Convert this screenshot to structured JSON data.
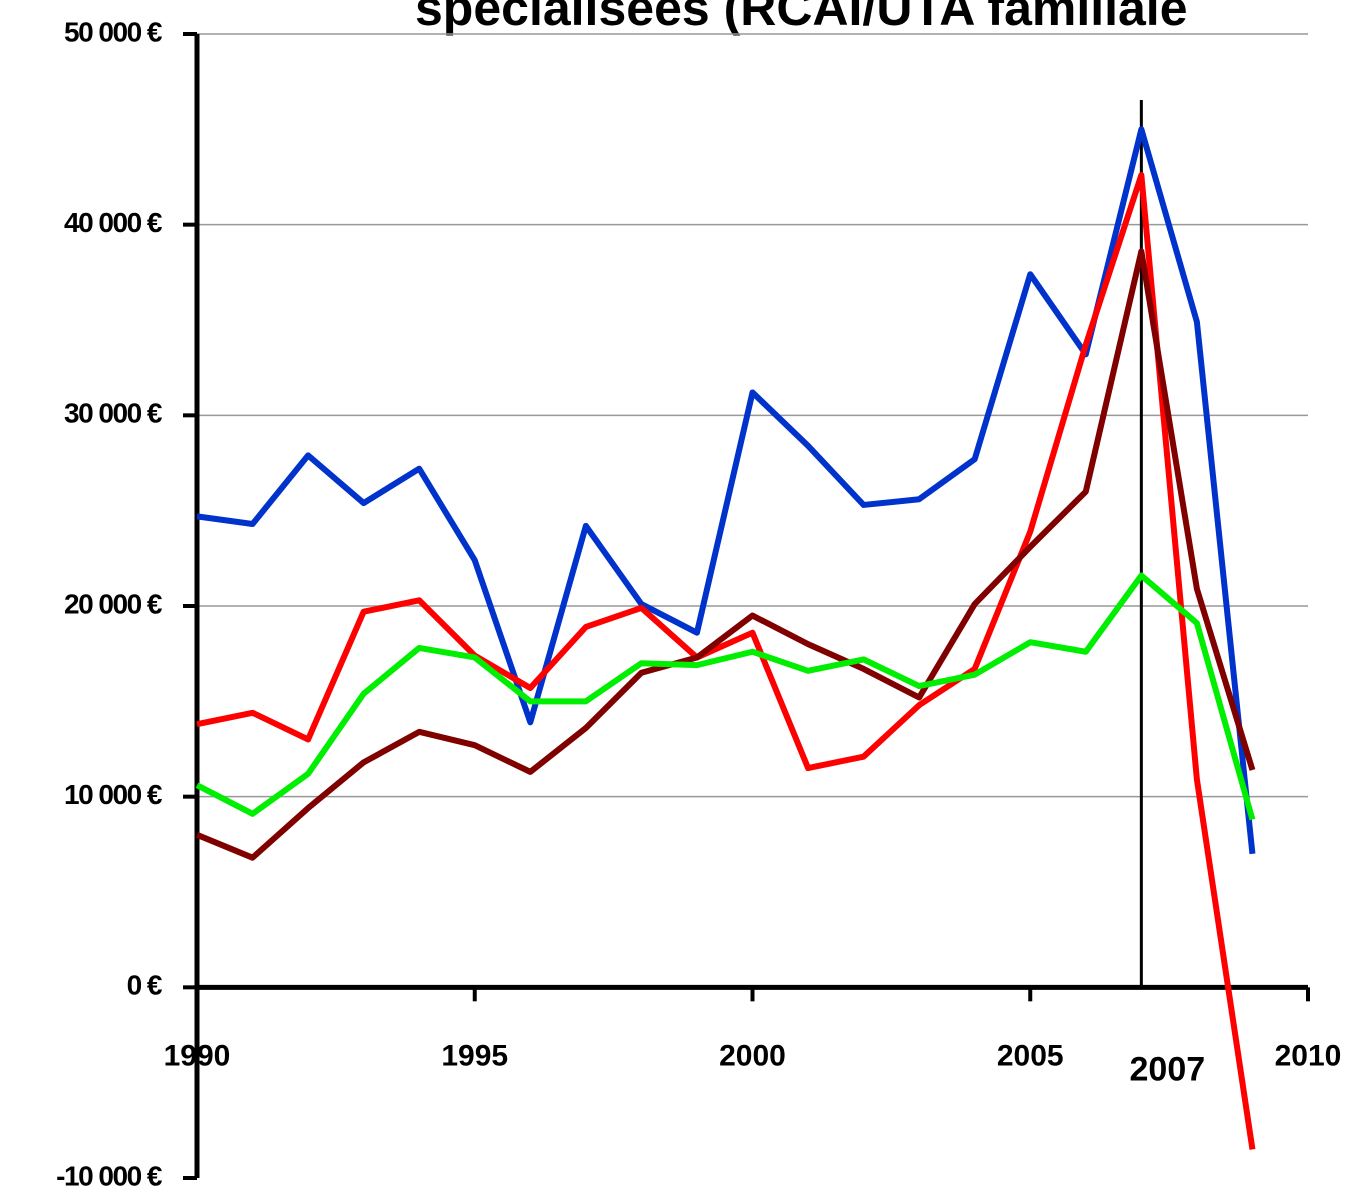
{
  "chart_data": {
    "type": "line",
    "title": "spécialisées (RCAI/UTA familiale",
    "x": [
      1990,
      1991,
      1992,
      1993,
      1994,
      1995,
      1996,
      1997,
      1998,
      1999,
      2000,
      2001,
      2002,
      2003,
      2004,
      2005,
      2006,
      2007,
      2008,
      2009
    ],
    "series": [
      {
        "color": "#0033cc",
        "values": [
          24700,
          24300,
          27900,
          25400,
          27200,
          22400,
          13900,
          24200,
          20100,
          18600,
          31200,
          28400,
          25300,
          25600,
          27700,
          37400,
          33200,
          45000,
          34900,
          7000
        ]
      },
      {
        "color": "#ff0000",
        "values": [
          13800,
          14400,
          13000,
          19700,
          20300,
          17400,
          15700,
          18900,
          19900,
          17300,
          18600,
          11500,
          12100,
          14800,
          16700,
          23900,
          33700,
          42600,
          10900,
          -8500
        ]
      },
      {
        "color": "#800000",
        "values": [
          8000,
          6800,
          9400,
          11800,
          13400,
          12700,
          11300,
          13600,
          16500,
          17300,
          19500,
          18000,
          16700,
          15200,
          20100,
          23100,
          26000,
          38600,
          20900,
          11400
        ]
      },
      {
        "color": "#00ee00",
        "values": [
          10600,
          9100,
          11200,
          15400,
          17800,
          17300,
          15000,
          15000,
          17000,
          16900,
          17600,
          16600,
          17200,
          15800,
          16400,
          18100,
          17600,
          21600,
          19100,
          8800
        ]
      }
    ],
    "xlim": [
      1990,
      2010
    ],
    "xticks": [
      1990,
      1995,
      2000,
      2005,
      2010
    ],
    "ylim": [
      -10000,
      50000
    ],
    "yticks": [
      {
        "value": -10000,
        "label": "-10 000 €"
      },
      {
        "value": 0,
        "label": "0 €"
      },
      {
        "value": 10000,
        "label": "10 000 €"
      },
      {
        "value": 20000,
        "label": "20 000 €"
      },
      {
        "value": 30000,
        "label": "30 000 €"
      },
      {
        "value": 40000,
        "label": "40 000 €"
      },
      {
        "value": 50000,
        "label": "50 000 €"
      }
    ],
    "grid": true,
    "annotation": {
      "value": 2007,
      "label": "2007"
    }
  }
}
